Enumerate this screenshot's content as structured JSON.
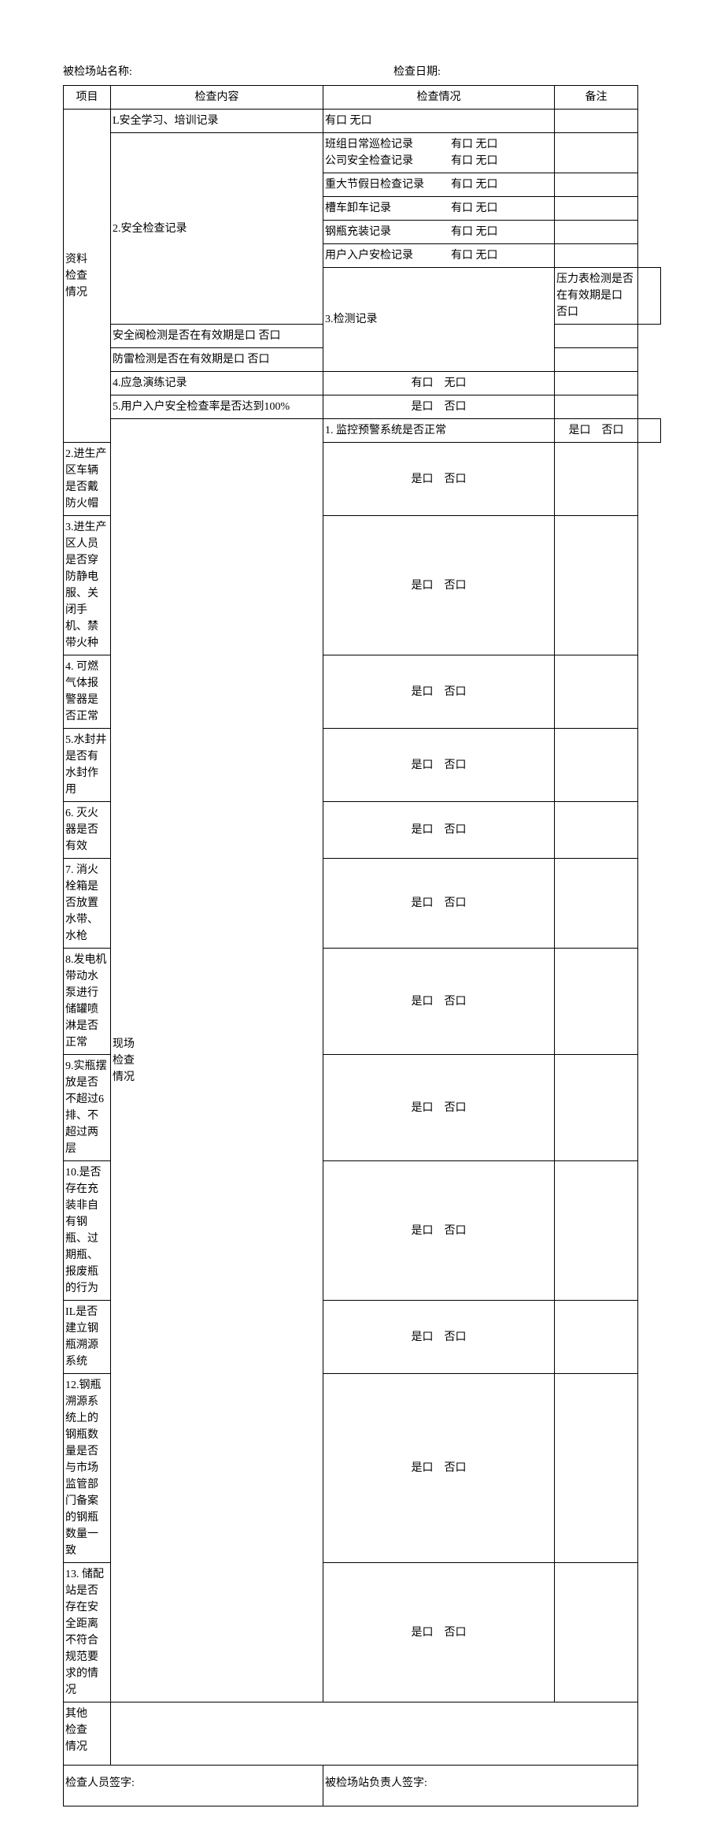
{
  "header": {
    "station_label": "被检场站名称:",
    "date_label": "检查日期:"
  },
  "table_headers": {
    "category": "项目",
    "content": "检查内容",
    "situation": "检查情况",
    "remark": "备注"
  },
  "options": {
    "you": "有口",
    "wu": "无口",
    "shi": "是口",
    "fou": "否口"
  },
  "section1": {
    "title": "资料\n检查\n情况",
    "r1": {
      "content": "L安全学习、培训记录",
      "situation": "有口 无口"
    },
    "r2": {
      "content": "2.安全检查记录",
      "sub": [
        {
          "label": "班组日常巡检记录",
          "opts": "有口 无口"
        },
        {
          "label": "公司安全检查记录",
          "opts": "有口 无口"
        },
        {
          "label": "重大节假日检查记录",
          "opts": "有口 无口"
        },
        {
          "label": "槽车卸车记录",
          "opts": "有口 无口"
        },
        {
          "label": "钢瓶充装记录",
          "opts": "有口 无口"
        },
        {
          "label": "用户入户安检记录",
          "opts": "有口 无口"
        }
      ]
    },
    "r3": {
      "content": "3.检测记录",
      "sub": [
        "压力表检测是否在有效期是口 否口",
        "安全阀检测是否在有效期是口 否口",
        "防雷检测是否在有效期是口 否口"
      ]
    },
    "r4": {
      "content": "4.应急演练记录",
      "situation_a": "有口",
      "situation_b": "无口"
    },
    "r5": {
      "content": "5.用户入户安全检查率是否达到100%",
      "situation_a": "是口",
      "situation_b": "否口"
    }
  },
  "section2": {
    "title": "现场\n检查\n情况",
    "rows": [
      {
        "content": "1. 监控预警系统是否正常"
      },
      {
        "content": "2.进生产区车辆是否戴防火帽"
      },
      {
        "content": "3.进生产区人员是否穿防静电服、关闭手机、禁带火种"
      },
      {
        "content": "4. 可燃气体报警器是否正常"
      },
      {
        "content": "5.水封井是否有水封作用"
      },
      {
        "content": "6. 灭火器是否有效"
      },
      {
        "content": "7. 消火栓箱是否放置水带、水枪"
      },
      {
        "content": "8.发电机带动水泵进行储罐喷淋是否正常"
      },
      {
        "content": "9.实瓶摆放是否不超过6排、不超过两层"
      },
      {
        "content": "10.是否存在充装非自有钢瓶、过期瓶、报废瓶的行为"
      },
      {
        "content": "IL是否建立钢瓶溯源系统"
      },
      {
        "content": "12.钢瓶溯源系统上的钢瓶数量是否与市场监管部门备案的钢瓶数量一致"
      },
      {
        "content": "13. 储配站是否存在安全距离不符合规范要求的情况"
      }
    ],
    "opt_a": "是口",
    "opt_b": "否口"
  },
  "section3": {
    "title": "其他\n检查\n情况"
  },
  "footer": {
    "inspector_sig": "检查人员签字:",
    "station_sig": "被检场站负责人签字:"
  }
}
